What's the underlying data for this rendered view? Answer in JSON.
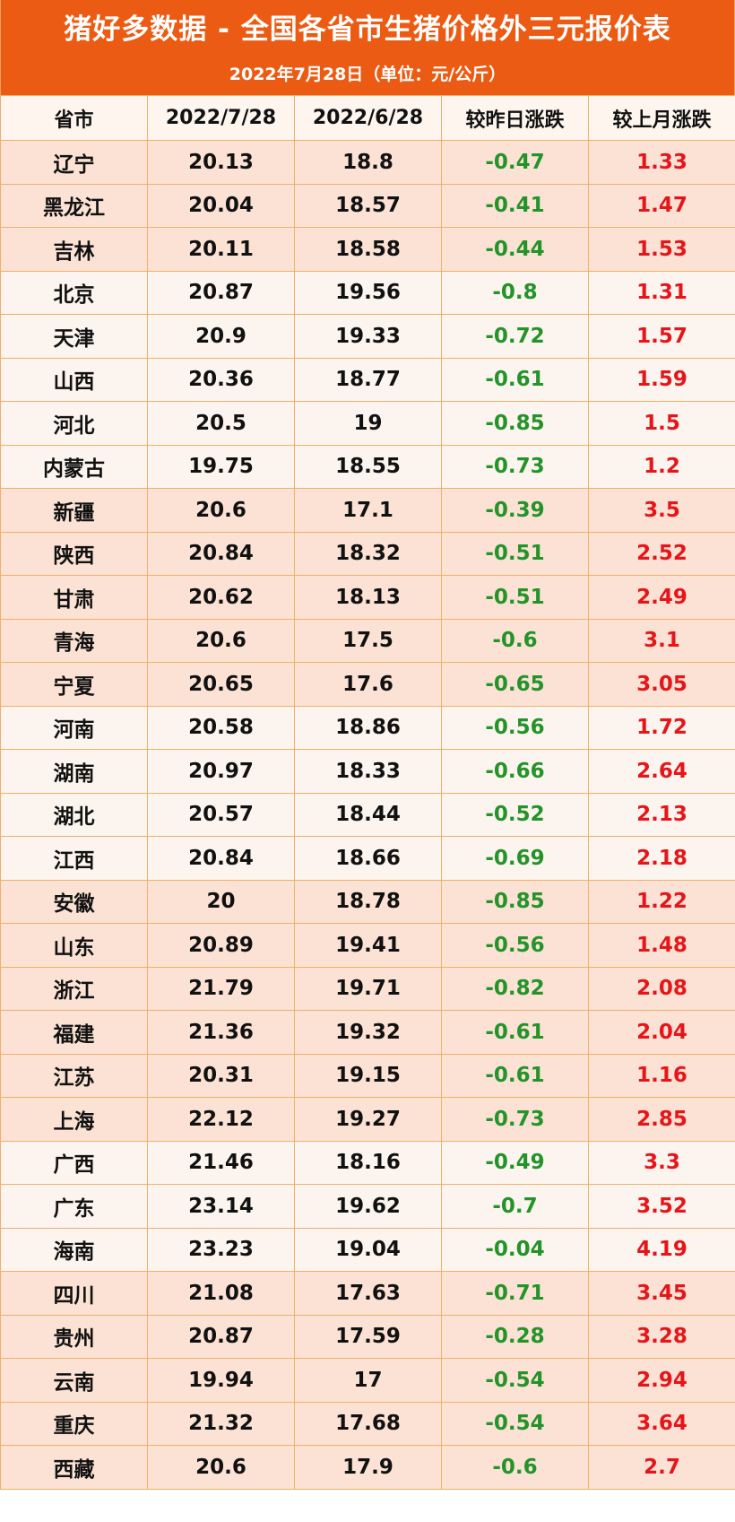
{
  "title": "猪好多数据 - 全国各省市生猪价格外三元报价表",
  "subtitle": "2022年7月28日（单位：元/公斤）",
  "colors": {
    "header_bg": "#ec5b13",
    "down": "#23932a",
    "up": "#e5151a",
    "row_light": "#fcf4ee",
    "row_dark": "#fbe2d4",
    "border": "#efb06a"
  },
  "table": {
    "headers": [
      "省市",
      "2022/7/28",
      "2022/6/28",
      "较昨日涨跌",
      "较上月涨跌"
    ],
    "rows": [
      {
        "shade": "dark",
        "cells": [
          "辽宁",
          "20.13",
          "18.8",
          "-0.47",
          "1.33"
        ]
      },
      {
        "shade": "dark",
        "cells": [
          "黑龙江",
          "20.04",
          "18.57",
          "-0.41",
          "1.47"
        ]
      },
      {
        "shade": "dark",
        "cells": [
          "吉林",
          "20.11",
          "18.58",
          "-0.44",
          "1.53"
        ]
      },
      {
        "shade": "light",
        "cells": [
          "北京",
          "20.87",
          "19.56",
          "-0.8",
          "1.31"
        ]
      },
      {
        "shade": "light",
        "cells": [
          "天津",
          "20.9",
          "19.33",
          "-0.72",
          "1.57"
        ]
      },
      {
        "shade": "light",
        "cells": [
          "山西",
          "20.36",
          "18.77",
          "-0.61",
          "1.59"
        ]
      },
      {
        "shade": "light",
        "cells": [
          "河北",
          "20.5",
          "19",
          "-0.85",
          "1.5"
        ]
      },
      {
        "shade": "light",
        "cells": [
          "内蒙古",
          "19.75",
          "18.55",
          "-0.73",
          "1.2"
        ]
      },
      {
        "shade": "dark",
        "cells": [
          "新疆",
          "20.6",
          "17.1",
          "-0.39",
          "3.5"
        ]
      },
      {
        "shade": "dark",
        "cells": [
          "陕西",
          "20.84",
          "18.32",
          "-0.51",
          "2.52"
        ]
      },
      {
        "shade": "dark",
        "cells": [
          "甘肃",
          "20.62",
          "18.13",
          "-0.51",
          "2.49"
        ]
      },
      {
        "shade": "dark",
        "cells": [
          "青海",
          "20.6",
          "17.5",
          "-0.6",
          "3.1"
        ]
      },
      {
        "shade": "dark",
        "cells": [
          "宁夏",
          "20.65",
          "17.6",
          "-0.65",
          "3.05"
        ]
      },
      {
        "shade": "light",
        "cells": [
          "河南",
          "20.58",
          "18.86",
          "-0.56",
          "1.72"
        ]
      },
      {
        "shade": "light",
        "cells": [
          "湖南",
          "20.97",
          "18.33",
          "-0.66",
          "2.64"
        ]
      },
      {
        "shade": "light",
        "cells": [
          "湖北",
          "20.57",
          "18.44",
          "-0.52",
          "2.13"
        ]
      },
      {
        "shade": "light",
        "cells": [
          "江西",
          "20.84",
          "18.66",
          "-0.69",
          "2.18"
        ]
      },
      {
        "shade": "dark",
        "cells": [
          "安徽",
          "20",
          "18.78",
          "-0.85",
          "1.22"
        ]
      },
      {
        "shade": "dark",
        "cells": [
          "山东",
          "20.89",
          "19.41",
          "-0.56",
          "1.48"
        ]
      },
      {
        "shade": "dark",
        "cells": [
          "浙江",
          "21.79",
          "19.71",
          "-0.82",
          "2.08"
        ]
      },
      {
        "shade": "dark",
        "cells": [
          "福建",
          "21.36",
          "19.32",
          "-0.61",
          "2.04"
        ]
      },
      {
        "shade": "dark",
        "cells": [
          "江苏",
          "20.31",
          "19.15",
          "-0.61",
          "1.16"
        ]
      },
      {
        "shade": "dark",
        "cells": [
          "上海",
          "22.12",
          "19.27",
          "-0.73",
          "2.85"
        ]
      },
      {
        "shade": "light",
        "cells": [
          "广西",
          "21.46",
          "18.16",
          "-0.49",
          "3.3"
        ]
      },
      {
        "shade": "light",
        "cells": [
          "广东",
          "23.14",
          "19.62",
          "-0.7",
          "3.52"
        ]
      },
      {
        "shade": "light",
        "cells": [
          "海南",
          "23.23",
          "19.04",
          "-0.04",
          "4.19"
        ]
      },
      {
        "shade": "dark",
        "cells": [
          "四川",
          "21.08",
          "17.63",
          "-0.71",
          "3.45"
        ]
      },
      {
        "shade": "dark",
        "cells": [
          "贵州",
          "20.87",
          "17.59",
          "-0.28",
          "3.28"
        ]
      },
      {
        "shade": "dark",
        "cells": [
          "云南",
          "19.94",
          "17",
          "-0.54",
          "2.94"
        ]
      },
      {
        "shade": "dark",
        "cells": [
          "重庆",
          "21.32",
          "17.68",
          "-0.54",
          "3.64"
        ]
      },
      {
        "shade": "dark",
        "cells": [
          "西藏",
          "20.6",
          "17.9",
          "-0.6",
          "2.7"
        ]
      }
    ]
  }
}
